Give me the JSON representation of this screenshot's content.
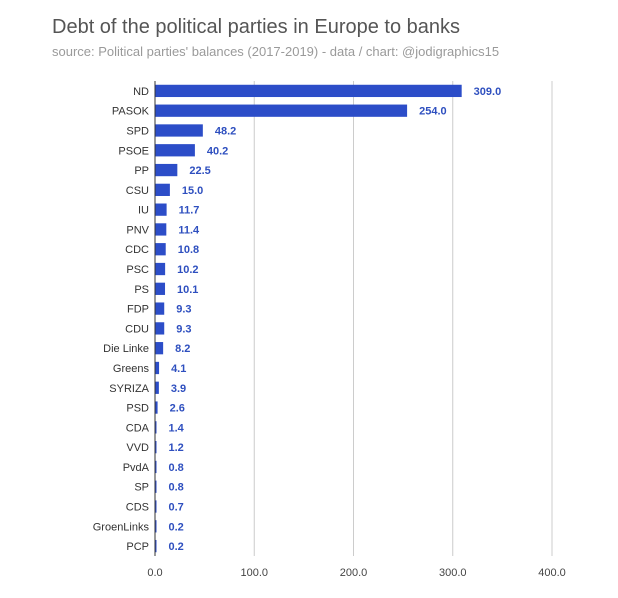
{
  "chart_data": {
    "type": "bar",
    "orientation": "horizontal",
    "title": "Debt of the political parties in Europe to banks",
    "subtitle": "source: Political parties' balances (2017-2019) - data / chart: @jodigraphics15",
    "categories": [
      "ND",
      "PASOK",
      "SPD",
      "PSOE",
      "PP",
      "CSU",
      "IU",
      "PNV",
      "CDC",
      "PSC",
      "PS",
      "FDP",
      "CDU",
      "Die Linke",
      "Greens",
      "SYRIZA",
      "PSD",
      "CDA",
      "VVD",
      "PvdA",
      "SP",
      "CDS",
      "GroenLinks",
      "PCP"
    ],
    "values": [
      309.0,
      254.0,
      48.2,
      40.2,
      22.5,
      15.0,
      11.7,
      11.4,
      10.8,
      10.2,
      10.1,
      9.3,
      9.3,
      8.2,
      4.1,
      3.9,
      2.6,
      1.4,
      1.2,
      0.8,
      0.8,
      0.7,
      0.2,
      0.2
    ],
    "value_labels": [
      "309.0",
      "254.0",
      "48.2",
      "40.2",
      "22.5",
      "15.0",
      "11.7",
      "11.4",
      "10.8",
      "10.2",
      "10.1",
      "9.3",
      "9.3",
      "8.2",
      "4.1",
      "3.9",
      "2.6",
      "1.4",
      "1.2",
      "0.8",
      "0.8",
      "0.7",
      "0.2",
      "0.2"
    ],
    "xlim": [
      0,
      400
    ],
    "xticks": [
      0,
      100,
      200,
      300,
      400
    ],
    "xtick_labels": [
      "0.0",
      "100.0",
      "200.0",
      "300.0",
      "400.0"
    ],
    "grid": true,
    "legend": "none",
    "bar_color": "#2c4dc8",
    "label_color": "#2e4fbf"
  }
}
